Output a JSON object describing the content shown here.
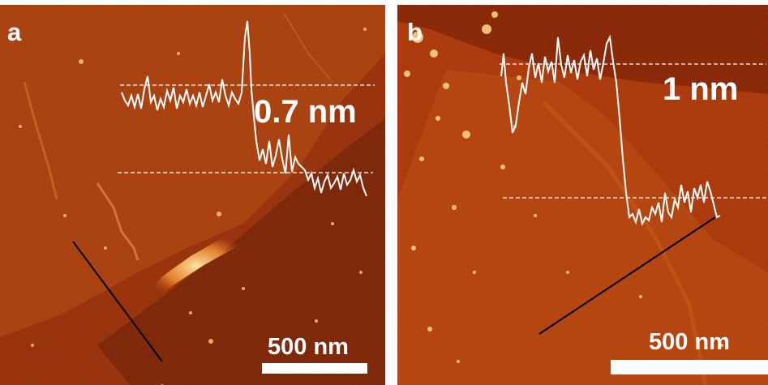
{
  "panels": [
    {
      "letter": "a",
      "height_label": "0.7 nm",
      "scale_label": "500 nm"
    },
    {
      "letter": "b",
      "height_label": "1 nm",
      "scale_label": "500 nm"
    }
  ],
  "colors": {
    "substrate_dark": "#6e1500",
    "substrate_mid": "#9a2e04",
    "substrate_light": "#b84710",
    "flake_highlight": "#ffd07a",
    "profile_line": "#ffffff",
    "cut_line": "#000000"
  }
}
